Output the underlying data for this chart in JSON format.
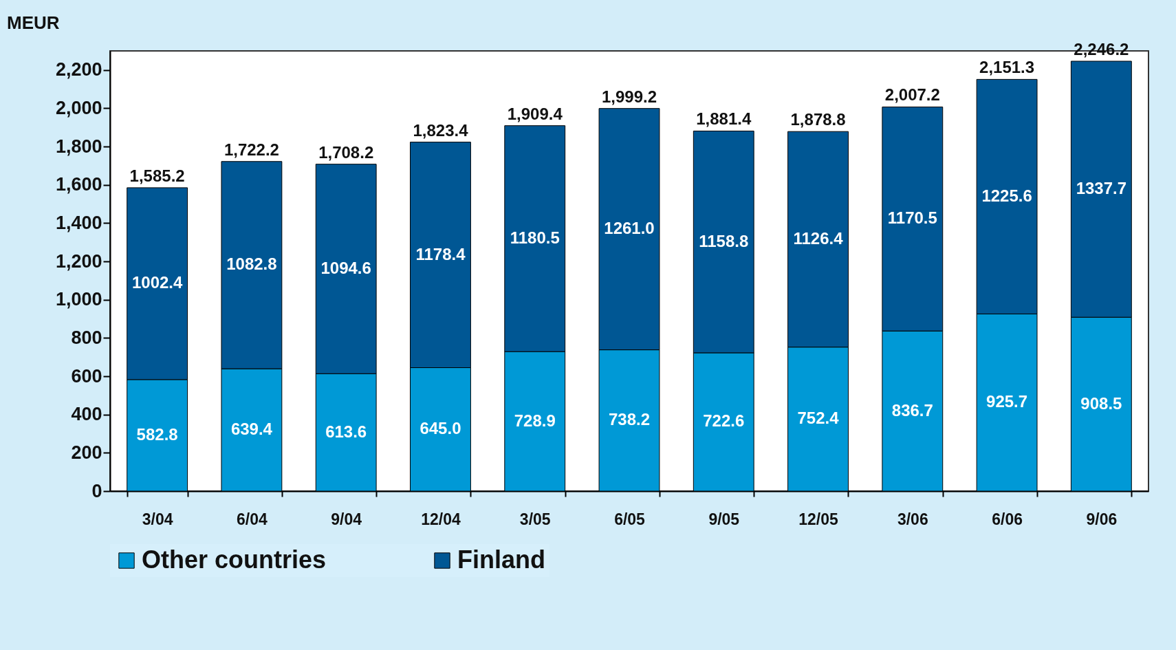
{
  "chart_data": {
    "type": "bar",
    "ylabel": "MEUR",
    "stacked": true,
    "categories": [
      "3/04",
      "6/04",
      "9/04",
      "12/04",
      "3/05",
      "6/05",
      "9/05",
      "12/05",
      "3/06",
      "6/06",
      "9/06"
    ],
    "series": [
      {
        "name": "Other countries",
        "color": "#0099d6",
        "values": [
          582.8,
          639.4,
          613.6,
          645.0,
          728.9,
          738.2,
          722.6,
          752.4,
          836.7,
          925.7,
          908.5
        ],
        "value_labels": [
          "582.8",
          "639.4",
          "613.6",
          "645.0",
          "728.9",
          "738.2",
          "722.6",
          "752.4",
          "836.7",
          "925.7",
          "908.5"
        ]
      },
      {
        "name": "Finland",
        "color": "#005794",
        "values": [
          1002.4,
          1082.8,
          1094.6,
          1178.4,
          1180.5,
          1261.0,
          1158.8,
          1126.4,
          1170.5,
          1225.6,
          1337.7
        ],
        "value_labels": [
          "1002.4",
          "1082.8",
          "1094.6",
          "1178.4",
          "1180.5",
          "1261.0",
          "1158.8",
          "1126.4",
          "1170.5",
          "1225.6",
          "1337.7"
        ]
      }
    ],
    "totals": [
      "1,585.2",
      "1,722.2",
      "1,708.2",
      "1,823.4",
      "1,909.4",
      "1,999.2",
      "1,881.4",
      "1,878.8",
      "2,007.2",
      "2,151.3",
      "2,246.2"
    ],
    "ylim": [
      0,
      2300
    ],
    "yticks": [
      {
        "value": 0,
        "label": "0"
      },
      {
        "value": 200,
        "label": "200"
      },
      {
        "value": 400,
        "label": "400"
      },
      {
        "value": 600,
        "label": "600"
      },
      {
        "value": 800,
        "label": "800"
      },
      {
        "value": 1000,
        "label": "1,000"
      },
      {
        "value": 1200,
        "label": "1,200"
      },
      {
        "value": 1400,
        "label": "1,400"
      },
      {
        "value": 1600,
        "label": "1,600"
      },
      {
        "value": 1800,
        "label": "1,800"
      },
      {
        "value": 2000,
        "label": "2,000"
      },
      {
        "value": 2200,
        "label": "2,200"
      }
    ],
    "grid": false,
    "legend": "bottom"
  }
}
